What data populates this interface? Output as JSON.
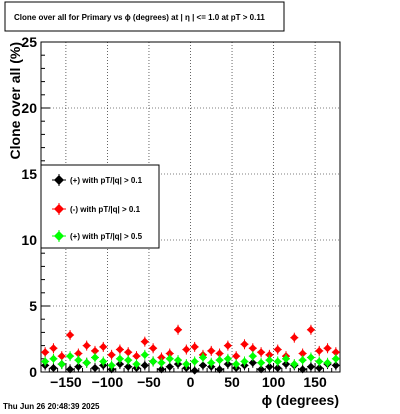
{
  "chart_data": {
    "type": "scatter",
    "title": "Clone  over all for Primary vs ϕ (degrees) at |  η  | <= 1.0 at pT > 0.11",
    "xlabel": "ϕ (degrees)",
    "ylabel": "Clone  over all (%)",
    "xlim": [
      -180,
      180
    ],
    "ylim": [
      0,
      25
    ],
    "x_ticks": [
      -150,
      -100,
      -50,
      0,
      50,
      100,
      150
    ],
    "x_tick_labels": [
      "−150",
      "−100",
      "−50",
      "0",
      "50",
      "100",
      "150"
    ],
    "y_ticks": [
      0,
      5,
      10,
      15,
      20,
      25
    ],
    "y_tick_labels": [
      "0",
      "5",
      "10",
      "15",
      "20",
      "25"
    ],
    "grid": true,
    "legend_position": "left-middle",
    "series": [
      {
        "name": "(+) with pT/|q| > 0.1",
        "color": "#000000",
        "x": [
          -175,
          -165,
          -155,
          -145,
          -135,
          -125,
          -115,
          -105,
          -95,
          -85,
          -75,
          -65,
          -55,
          -45,
          -35,
          -25,
          -15,
          -5,
          5,
          15,
          25,
          35,
          45,
          55,
          65,
          75,
          85,
          95,
          105,
          115,
          125,
          135,
          145,
          155,
          165,
          175
        ],
        "y": [
          0.5,
          0.3,
          0.6,
          0.2,
          0.4,
          0.7,
          0.3,
          0.5,
          0.2,
          0.6,
          0.4,
          0.3,
          0.5,
          0.8,
          0.2,
          0.4,
          0.6,
          0.3,
          0.1,
          0.5,
          0.4,
          0.2,
          0.6,
          0.3,
          0.5,
          0.7,
          0.2,
          0.4,
          0.3,
          0.6,
          0.5,
          0.2,
          0.4,
          0.3,
          0.6,
          0.5
        ]
      },
      {
        "name": "(-) with pT/|q| > 0.1",
        "color": "#ff0000",
        "x": [
          -175,
          -165,
          -155,
          -145,
          -135,
          -125,
          -115,
          -105,
          -95,
          -85,
          -75,
          -65,
          -55,
          -45,
          -35,
          -25,
          -15,
          -5,
          5,
          15,
          25,
          35,
          45,
          55,
          65,
          75,
          85,
          95,
          105,
          115,
          125,
          135,
          145,
          155,
          165,
          175
        ],
        "y": [
          1.5,
          1.8,
          1.2,
          2.8,
          1.4,
          2.0,
          1.6,
          1.9,
          1.3,
          1.7,
          1.5,
          1.2,
          2.3,
          1.8,
          1.1,
          1.4,
          3.2,
          1.7,
          1.9,
          1.3,
          1.6,
          1.4,
          2.0,
          1.2,
          2.1,
          1.8,
          1.5,
          1.3,
          1.7,
          1.2,
          2.6,
          1.4,
          3.2,
          1.6,
          1.8,
          1.5
        ]
      },
      {
        "name": "(+) with pT/|q| > 0.5",
        "color": "#00ff00",
        "x": [
          -175,
          -165,
          -155,
          -145,
          -135,
          -125,
          -115,
          -105,
          -95,
          -85,
          -75,
          -65,
          -55,
          -45,
          -35,
          -25,
          -15,
          -5,
          5,
          15,
          25,
          35,
          45,
          55,
          65,
          75,
          85,
          95,
          105,
          115,
          125,
          135,
          145,
          155,
          165,
          175
        ],
        "y": [
          0.8,
          1.0,
          0.6,
          1.2,
          0.9,
          0.7,
          1.1,
          0.8,
          0.5,
          1.0,
          0.9,
          0.6,
          1.3,
          0.8,
          0.7,
          1.0,
          0.9,
          0.6,
          0.8,
          1.1,
          0.7,
          0.9,
          1.0,
          0.6,
          0.8,
          1.2,
          0.7,
          0.9,
          0.8,
          1.0,
          0.6,
          0.9,
          1.1,
          0.8,
          0.7,
          1.0
        ]
      }
    ],
    "timestamp": "Thu Jun 26 20:48:39 2025"
  }
}
